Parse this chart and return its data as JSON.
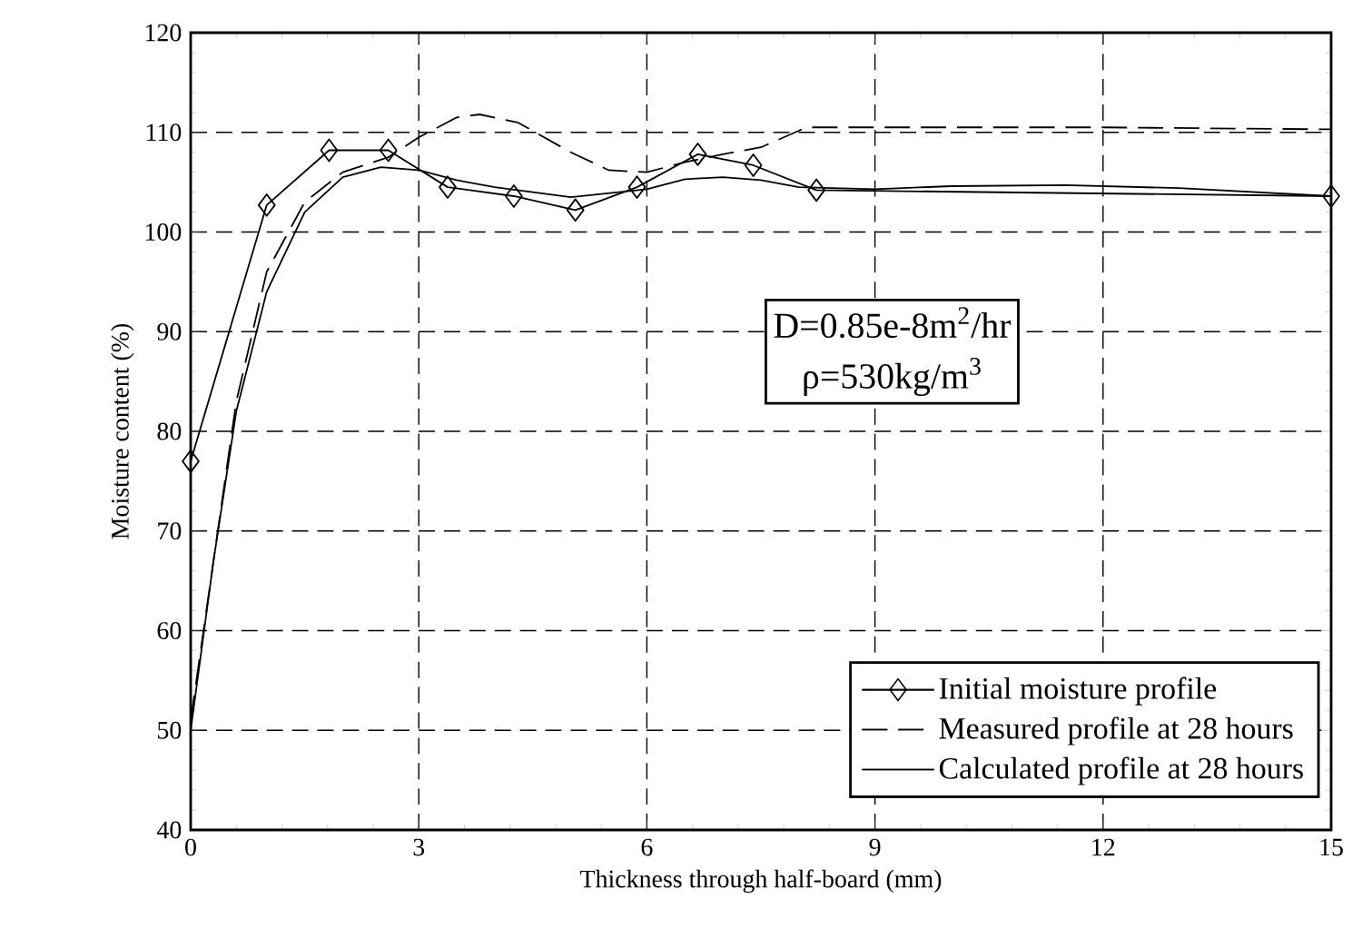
{
  "chart_data": {
    "type": "line",
    "xlabel": "Thickness through half-board (mm)",
    "ylabel": "Moisture content (%)",
    "xlim": [
      0,
      15
    ],
    "ylim": [
      40,
      120
    ],
    "xticks": [
      0,
      3,
      6,
      9,
      12,
      15
    ],
    "yticks": [
      40,
      50,
      60,
      70,
      80,
      90,
      100,
      110,
      120
    ],
    "grid": true,
    "legend": "bottom right",
    "annotations": [
      "D=0.85e-8m$^{2}$/hr",
      "ρ=530kg/m$^{3}$"
    ],
    "series": [
      {
        "name": "Initial moisture profile",
        "color": "#000000",
        "marker": "diamond",
        "line_style": "solid",
        "x": [
          0,
          1.0,
          1.82,
          2.6,
          3.38,
          4.25,
          5.06,
          5.87,
          6.67,
          7.4,
          8.23,
          15
        ],
        "values": [
          77,
          102.7,
          108.2,
          108.2,
          104.5,
          103.6,
          102.2,
          104.5,
          107.8,
          106.7,
          104.2,
          103.6
        ]
      },
      {
        "name": "Measured profile at 28 hours",
        "color": "#000000",
        "marker": "none",
        "line_style": "dashed",
        "x": [
          0,
          0.3,
          0.6,
          1.0,
          1.5,
          2.0,
          2.6,
          3.0,
          3.5,
          3.8,
          4.3,
          5.0,
          5.5,
          6.0,
          6.5,
          7.0,
          7.5,
          8.1,
          8.5,
          9,
          12,
          15
        ],
        "values": [
          51,
          67,
          83,
          96,
          103,
          106,
          107.5,
          109.5,
          111.5,
          111.8,
          111,
          108,
          106.2,
          106,
          107,
          107.8,
          108.5,
          110.5,
          110.5,
          110.5,
          110.5,
          110.3
        ]
      },
      {
        "name": "Calculated profile at 28 hours",
        "color": "#000000",
        "marker": "none",
        "line_style": "solid",
        "x": [
          0,
          0.3,
          0.6,
          1.0,
          1.5,
          2.0,
          2.5,
          3.0,
          3.5,
          4.0,
          5.0,
          6.0,
          6.5,
          7.0,
          7.5,
          8.0,
          9,
          10,
          11.5,
          13,
          15
        ],
        "values": [
          50,
          67,
          82,
          94,
          102,
          105.5,
          106.5,
          106.2,
          105.2,
          104.5,
          103.5,
          104.3,
          105.3,
          105.5,
          105.2,
          104.5,
          104.3,
          104.6,
          104.7,
          104.4,
          103.6
        ]
      }
    ]
  }
}
